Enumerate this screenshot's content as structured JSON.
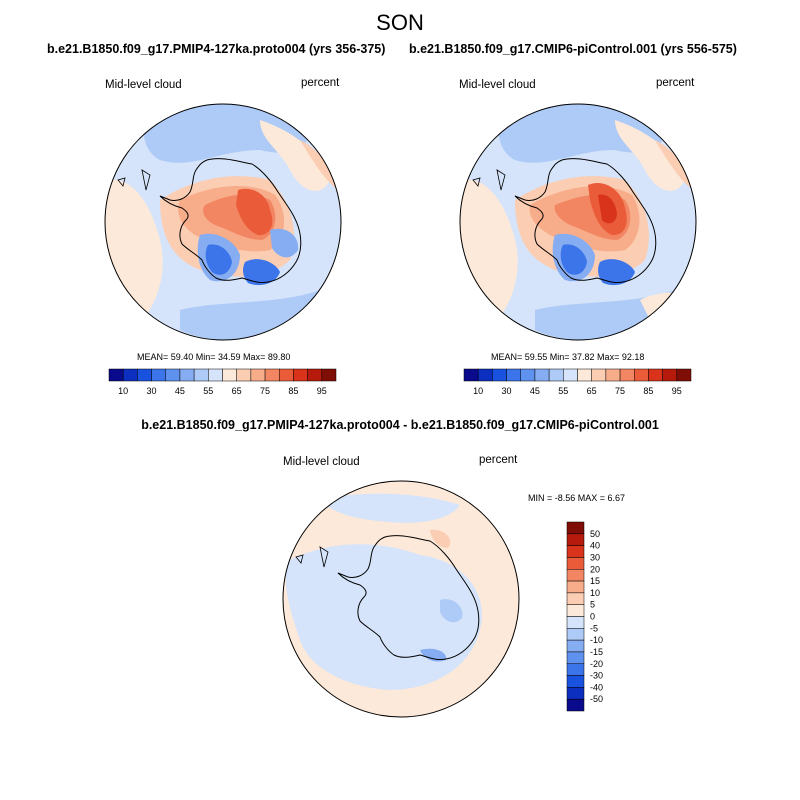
{
  "figure": {
    "season": "SON"
  },
  "panels": [
    {
      "title": "b.e21.B1850.f09_g17.PMIP4-127ka.proto004 (yrs 356-375)",
      "variable": "Mid-level cloud",
      "units": "percent",
      "stats": "MEAN=  59.40  Min=  34.59  Max=  89.80"
    },
    {
      "title": "b.e21.B1850.f09_g17.CMIP6-piControl.001 (yrs 556-575)",
      "variable": "Mid-level cloud",
      "units": "percent",
      "stats": "MEAN=  59.55  Min=  37.82  Max=  92.18"
    },
    {
      "title": "b.e21.B1850.f09_g17.PMIP4-127ka.proto004 - b.e21.B1850.f09_g17.CMIP6-piControl.001",
      "variable": "Mid-level cloud",
      "units": "percent",
      "stats": "MIN =  -8.56 MAX =   6.67"
    }
  ],
  "colorbar_abs": {
    "colors": [
      "#0a0a8c",
      "#0c2fbf",
      "#1a52e0",
      "#3c74ea",
      "#5f92ee",
      "#86adf2",
      "#aecaf6",
      "#d5e4fa",
      "#fde9d9",
      "#fbcdb2",
      "#f7ac8a",
      "#f28662",
      "#ea5b3a",
      "#d9331c",
      "#b51a0c",
      "#7f0e06"
    ],
    "labels": [
      "10",
      "30",
      "45",
      "55",
      "65",
      "75",
      "85",
      "95"
    ]
  },
  "colorbar_diff": {
    "colors": [
      "#0a0a8c",
      "#0c2fbf",
      "#1a52e0",
      "#3c74ea",
      "#5f92ee",
      "#86adf2",
      "#aecaf6",
      "#d5e4fa",
      "#fde9d9",
      "#fbcdb2",
      "#f7ac8a",
      "#f28662",
      "#ea5b3a",
      "#d9331c",
      "#b51a0c",
      "#7f0e06"
    ],
    "labels": [
      "50",
      "40",
      "30",
      "20",
      "15",
      "10",
      "5",
      "0",
      "-5",
      "-10",
      "-15",
      "-20",
      "-30",
      "-40",
      "-50"
    ]
  },
  "map_colors": {
    "ocean_light": "#d5e4fa",
    "ocean_mid": "#aecaf6",
    "peach": "#fde9d9",
    "salmon": "#fbcdb2",
    "blue_mid": "#86adf2",
    "blue_strong": "#3c74ea",
    "blue_deep": "#1a52e0",
    "red_light": "#f7ac8a",
    "red_mid": "#f28662",
    "red_strong": "#ea5b3a",
    "red_deep": "#d9331c"
  }
}
